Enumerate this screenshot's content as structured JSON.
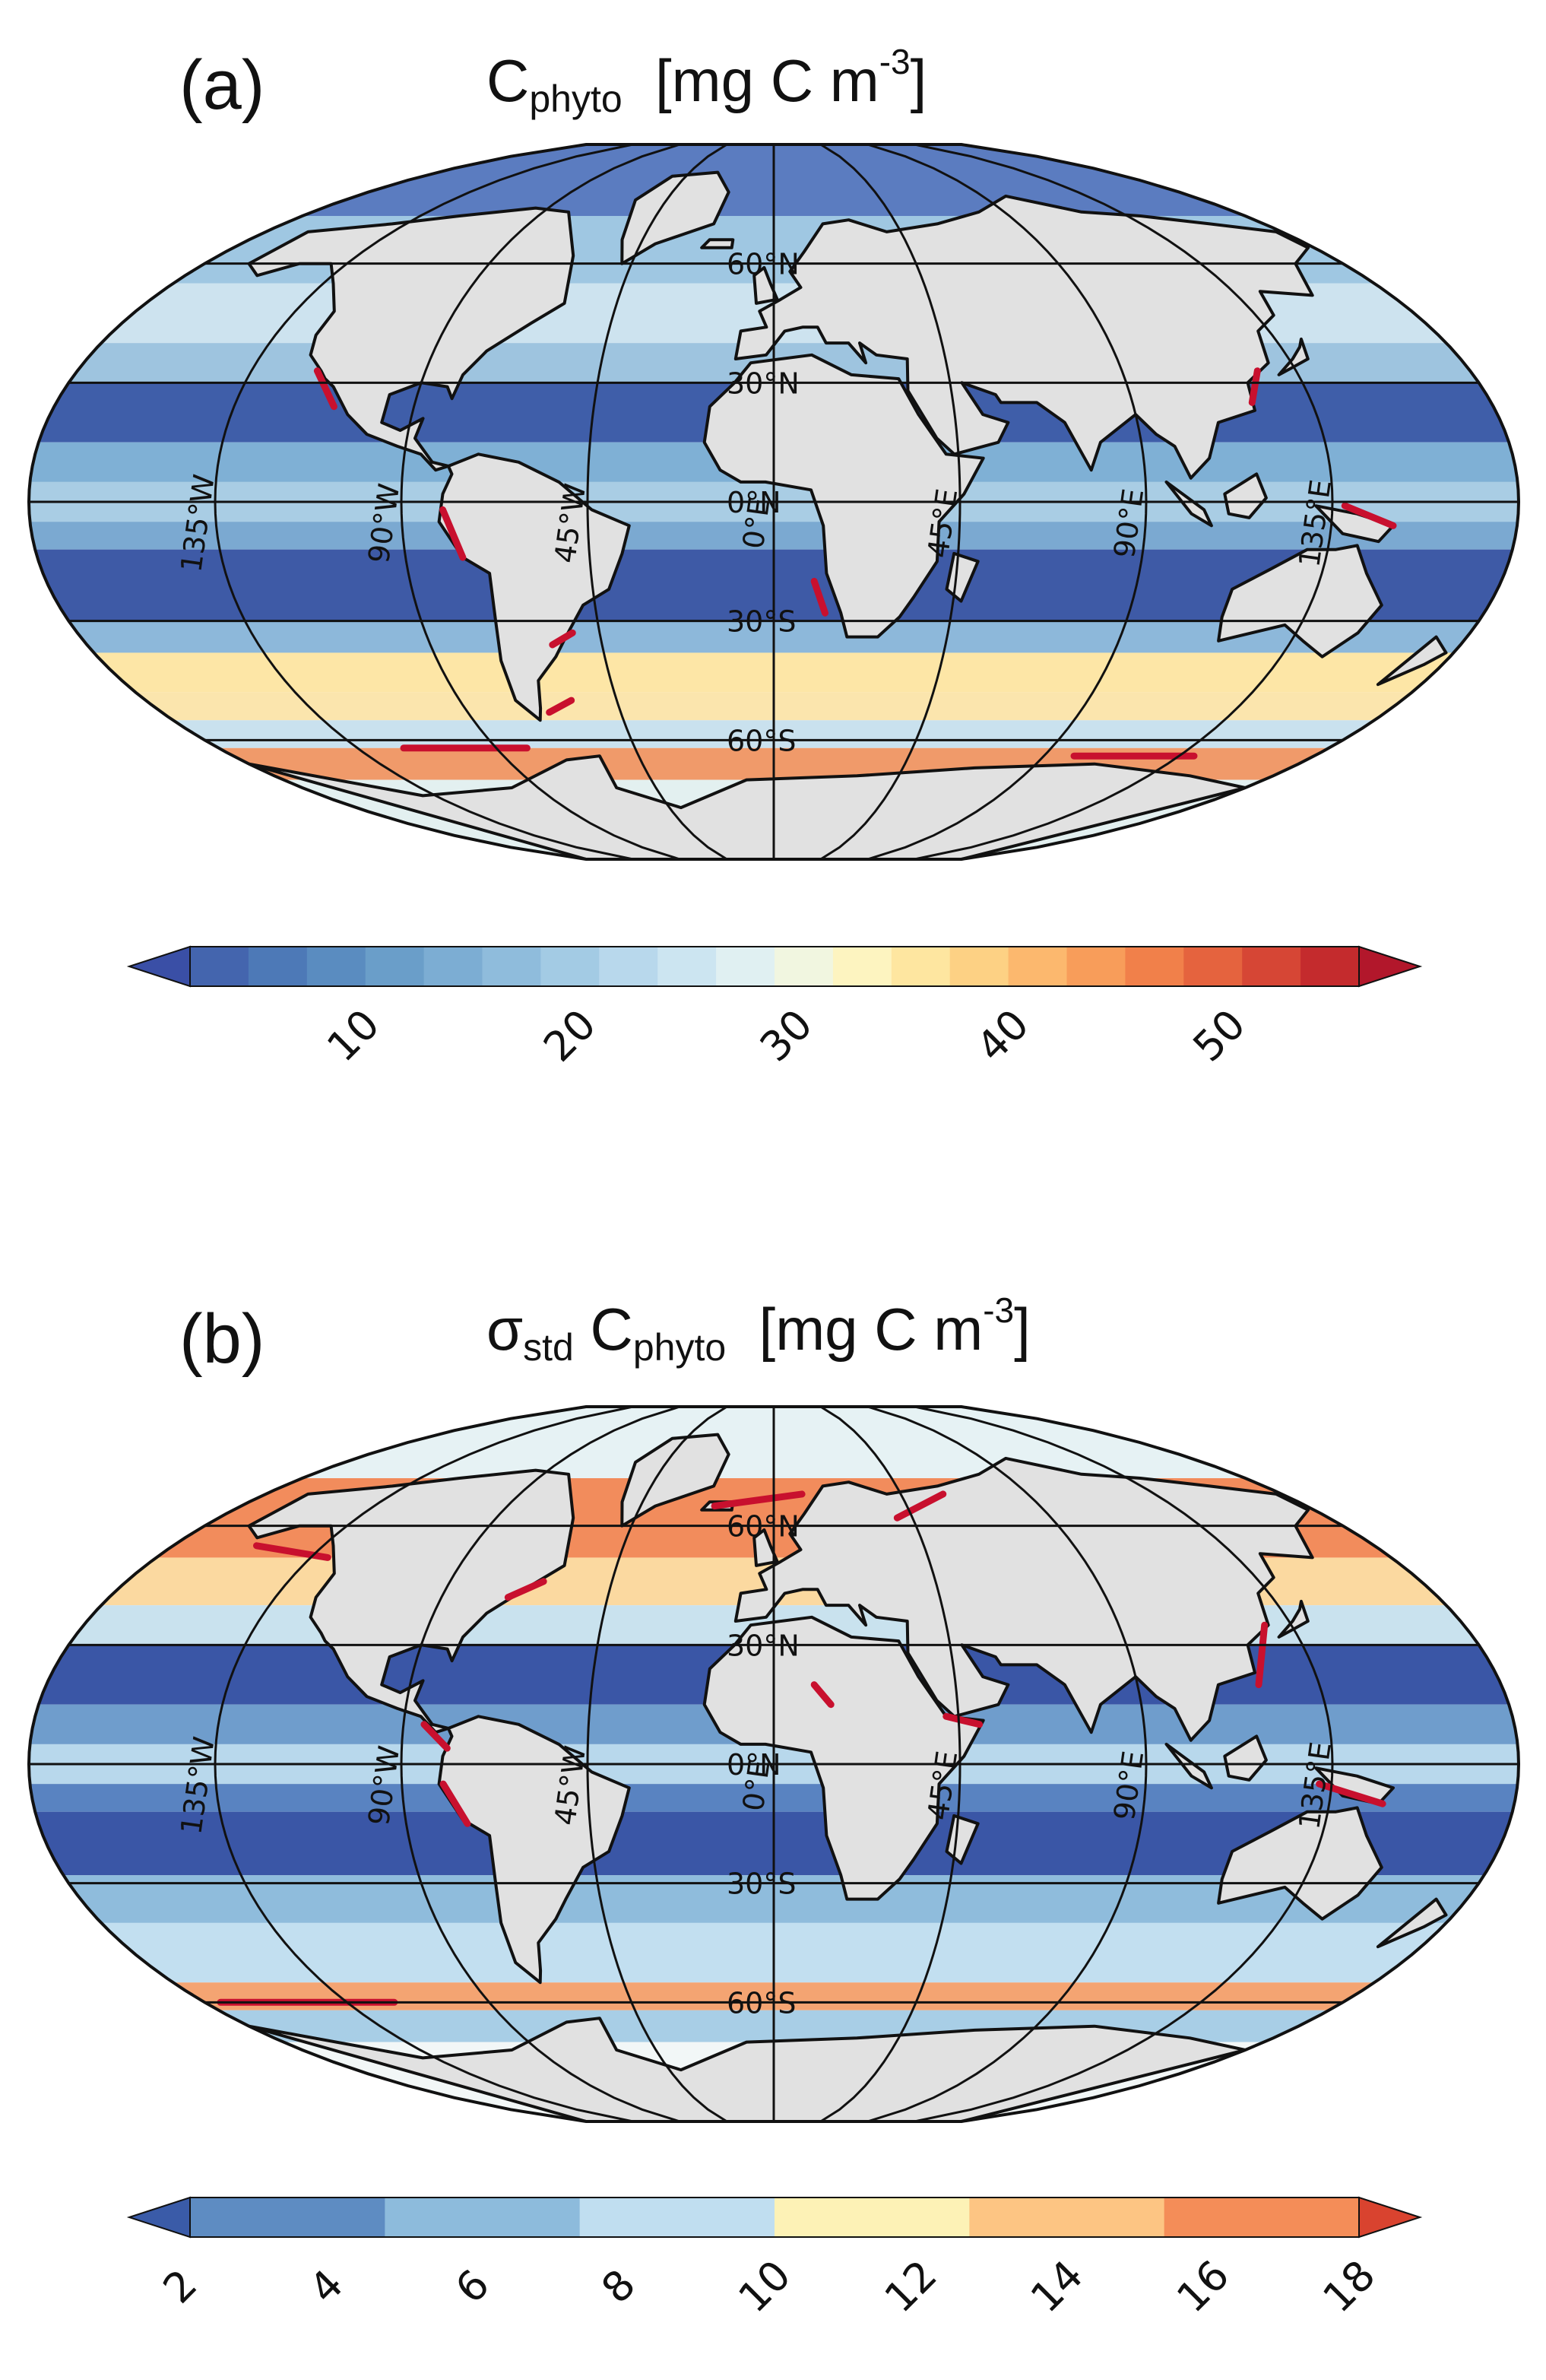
{
  "panel_a": {
    "label": "(a)",
    "title": {
      "main": "C",
      "sub": "phyto",
      "units_pre": "[mg C m",
      "units_sup": "-3",
      "units_post": "]"
    },
    "colorbar": {
      "ticks": [
        "10",
        "20",
        "30",
        "40",
        "50"
      ],
      "tick_values": [
        10,
        20,
        30,
        40,
        50
      ],
      "min": 2,
      "max": 56,
      "extend": "both",
      "colors": [
        "#3a4fa6",
        "#4465ae",
        "#4d79b7",
        "#5a8cc0",
        "#6a9ec9",
        "#7cadd3",
        "#8fbcdc",
        "#a3cbe4",
        "#b8d8ec",
        "#cce5f1",
        "#e0f0f2",
        "#f1f6e0",
        "#fdf4c0",
        "#fee6a0",
        "#fdd184",
        "#fcb86e",
        "#f89d5a",
        "#f1804a",
        "#e5633e",
        "#d64635",
        "#c42b2d",
        "#b2172b"
      ]
    }
  },
  "panel_b": {
    "label": "(b)",
    "title": {
      "pre": "σ",
      "pre_sub": "std",
      "main": "C",
      "sub": "phyto",
      "units_pre": "[mg C m",
      "units_sup": "-3",
      "units_post": "]"
    },
    "colorbar": {
      "ticks": [
        "2",
        "4",
        "6",
        "8",
        "10",
        "12",
        "14",
        "16",
        "18"
      ],
      "tick_values": [
        2,
        4,
        6,
        8,
        10,
        12,
        14,
        16,
        18
      ],
      "min": 2,
      "max": 18,
      "extend": "both",
      "colors": [
        "#3a5ba8",
        "#5e8cc2",
        "#8dbbdc",
        "#c0def0",
        "#fdf2b6",
        "#fdc583",
        "#f48d58",
        "#d9432f"
      ]
    }
  },
  "map": {
    "projection": "robinson",
    "lat_labels": [
      "60°N",
      "30°N",
      "0°N",
      "30°S",
      "60°S"
    ],
    "lon_labels": [
      "135°W",
      "90°W",
      "45°W",
      "0°E",
      "45°E",
      "90°E",
      "135°E"
    ],
    "land_color": "#e1e1e1"
  }
}
